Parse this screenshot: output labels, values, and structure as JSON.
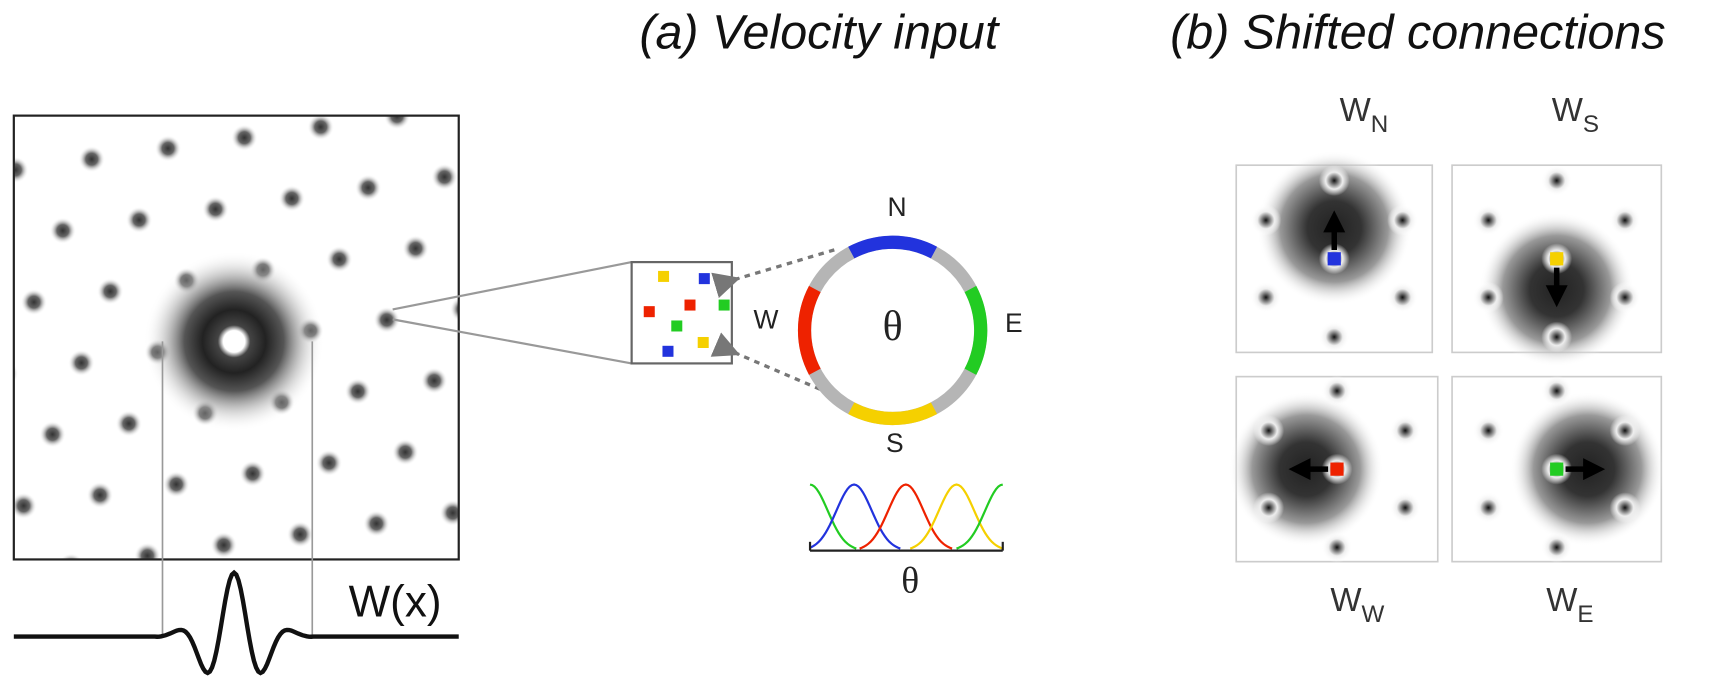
{
  "panel_a": {
    "title": "(a) Velocity input",
    "ring": {
      "center_label": "θ",
      "directions": {
        "north": "N",
        "east": "E",
        "south": "S",
        "west": "W"
      }
    },
    "tuning_axis_label": "θ"
  },
  "kernel_label": "W(x)",
  "panel_b": {
    "title": "(b) Shifted connections",
    "weights": [
      {
        "main": "W",
        "sub": "N"
      },
      {
        "main": "W",
        "sub": "S"
      },
      {
        "main": "W",
        "sub": "W"
      },
      {
        "main": "W",
        "sub": "E"
      }
    ]
  }
}
